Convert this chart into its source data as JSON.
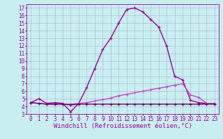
{
  "title": "",
  "xlabel": "Windchill (Refroidissement éolien,°C)",
  "ylabel": "",
  "background_color": "#c8eef0",
  "grid_color": "#b0b0cc",
  "line_color": "#990099",
  "xlim": [
    -0.5,
    23.5
  ],
  "ylim": [
    3,
    17.5
  ],
  "yticks": [
    3,
    4,
    5,
    6,
    7,
    8,
    9,
    10,
    11,
    12,
    13,
    14,
    15,
    16,
    17
  ],
  "xticks": [
    0,
    1,
    2,
    3,
    4,
    5,
    6,
    7,
    8,
    9,
    10,
    11,
    12,
    13,
    14,
    15,
    16,
    17,
    18,
    19,
    20,
    21,
    22,
    23
  ],
  "series": [
    {
      "x": [
        0,
        1,
        2,
        3,
        4,
        5,
        6,
        7,
        8,
        9,
        10,
        11,
        12,
        13,
        14,
        15,
        16,
        17,
        18,
        19,
        20,
        21,
        22,
        23
      ],
      "y": [
        4.5,
        5.0,
        4.4,
        4.5,
        4.4,
        3.3,
        4.4,
        6.5,
        9.0,
        11.5,
        13.0,
        15.0,
        16.8,
        17.0,
        16.5,
        15.5,
        14.5,
        12.0,
        8.0,
        7.5,
        4.8,
        4.5,
        4.4,
        4.4
      ],
      "color": "#990099",
      "linewidth": 1.0,
      "marker": "+"
    },
    {
      "x": [
        0,
        1,
        2,
        3,
        4,
        5,
        6,
        7,
        8,
        9,
        10,
        11,
        12,
        13,
        14,
        15,
        16,
        17,
        18,
        19,
        20,
        21,
        22,
        23
      ],
      "y": [
        4.5,
        4.4,
        4.3,
        4.3,
        4.3,
        4.3,
        4.4,
        4.5,
        4.7,
        4.9,
        5.1,
        5.4,
        5.6,
        5.8,
        6.0,
        6.2,
        6.4,
        6.6,
        6.8,
        7.0,
        5.5,
        5.2,
        4.4,
        4.4
      ],
      "color": "#cc44cc",
      "linewidth": 1.0,
      "marker": "+"
    },
    {
      "x": [
        0,
        1,
        2,
        3,
        4,
        5,
        6,
        7,
        8,
        9,
        10,
        11,
        12,
        13,
        14,
        15,
        16,
        17,
        18,
        19,
        20,
        21,
        22,
        23
      ],
      "y": [
        4.5,
        4.4,
        4.3,
        4.3,
        4.3,
        4.2,
        4.3,
        4.3,
        4.3,
        4.3,
        4.3,
        4.3,
        4.3,
        4.3,
        4.3,
        4.3,
        4.3,
        4.3,
        4.3,
        4.3,
        4.3,
        4.3,
        4.3,
        4.3
      ],
      "color": "#660066",
      "linewidth": 1.0,
      "marker": "+"
    }
  ],
  "tick_fontsize": 5.5,
  "xlabel_fontsize": 6.5,
  "font_family": "monospace"
}
